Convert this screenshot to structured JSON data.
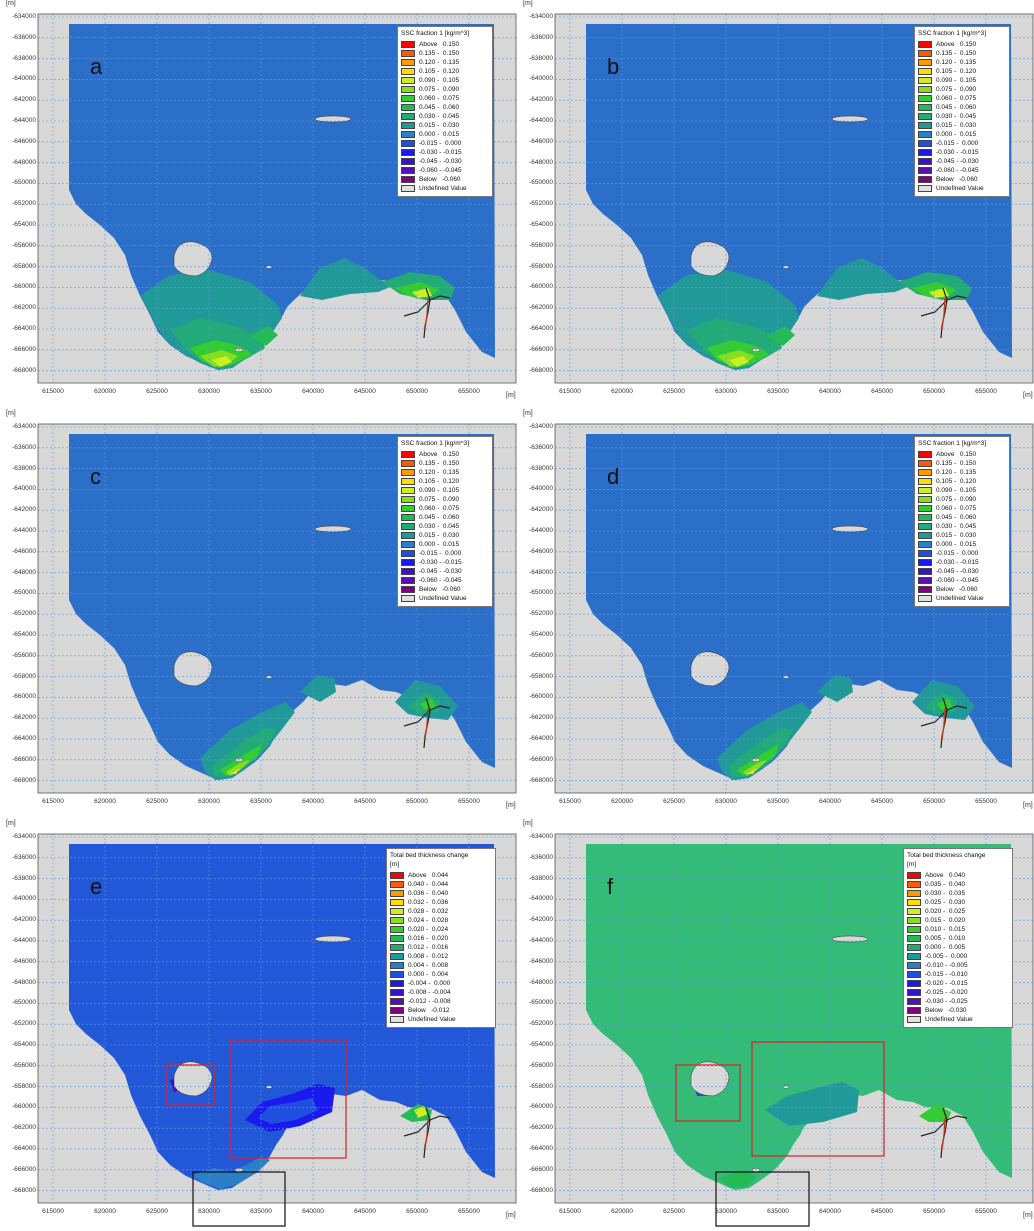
{
  "axis": {
    "unit_label": "[m]",
    "y_ticks": [
      "-634000",
      "-636000",
      "-638000",
      "-640000",
      "-642000",
      "-644000",
      "-646000",
      "-648000",
      "-650000",
      "-652000",
      "-654000",
      "-656000",
      "-658000",
      "-660000",
      "-662000",
      "-664000",
      "-666000",
      "-668000"
    ],
    "x_ticks": [
      "615000",
      "620000",
      "625000",
      "630000",
      "635000",
      "640000",
      "645000",
      "650000",
      "655000"
    ]
  },
  "colors": {
    "land": "#d8d8d8",
    "sea_ssc": "#2b6fc9",
    "sea_bed_e": "#2257d8",
    "sea_bed_f": "#33bb77",
    "grid_line": "#5a9be0",
    "highlight_red": "#e02020",
    "highlight_black": "#111111"
  },
  "ssc_legend": {
    "title": "SSC fraction 1 [kg/m^3]",
    "rows": [
      {
        "label": "Above   0.150",
        "color": "#ff0000"
      },
      {
        "label": "0.135 -  0.150",
        "color": "#ff5a00"
      },
      {
        "label": "0.120 -  0.135",
        "color": "#ff9900"
      },
      {
        "label": "0.105 -  0.120",
        "color": "#ffdd00"
      },
      {
        "label": "0.090 -  0.105",
        "color": "#ccee22"
      },
      {
        "label": "0.075 -  0.090",
        "color": "#88dd22"
      },
      {
        "label": "0.060 -  0.075",
        "color": "#33cc33"
      },
      {
        "label": "0.045 -  0.060",
        "color": "#22bb55"
      },
      {
        "label": "0.030 -  0.045",
        "color": "#22aa77"
      },
      {
        "label": "0.015 -  0.030",
        "color": "#229999"
      },
      {
        "label": "0.000 -  0.015",
        "color": "#2b7fc9"
      },
      {
        "label": "-0.015 -  0.000",
        "color": "#1e4fe0"
      },
      {
        "label": "-0.030 - -0.015",
        "color": "#1a1aee"
      },
      {
        "label": "-0.045 - -0.030",
        "color": "#3a12cc"
      },
      {
        "label": "-0.060 - -0.045",
        "color": "#5a0fb0"
      },
      {
        "label": "Below   -0.060",
        "color": "#800080"
      },
      {
        "label": "Undefined Value",
        "color": "#e0e0e0"
      }
    ]
  },
  "bed_legend_e": {
    "title_line1": "Total bed thickness change",
    "title_line2": "[m]",
    "rows": [
      {
        "label": "Above   0.044",
        "color": "#ff0000"
      },
      {
        "label": "0.040 -  0.044",
        "color": "#ff5a00"
      },
      {
        "label": "0.036 -  0.040",
        "color": "#ff9900"
      },
      {
        "label": "0.032 -  0.036",
        "color": "#ffdd00"
      },
      {
        "label": "0.028 -  0.032",
        "color": "#ccee22"
      },
      {
        "label": "0.024 -  0.028",
        "color": "#88dd22"
      },
      {
        "label": "0.020 -  0.024",
        "color": "#33cc33"
      },
      {
        "label": "0.016 -  0.020",
        "color": "#22bb55"
      },
      {
        "label": "0.012 -  0.016",
        "color": "#22aa77"
      },
      {
        "label": "0.008 -  0.012",
        "color": "#229999"
      },
      {
        "label": "0.004 -  0.008",
        "color": "#2b7fc9"
      },
      {
        "label": "0.000 -  0.004",
        "color": "#1e4fe0"
      },
      {
        "label": "-0.004 -  0.000",
        "color": "#1a1aee"
      },
      {
        "label": "-0.008 - -0.004",
        "color": "#3a12cc"
      },
      {
        "label": "-0.012 - -0.008",
        "color": "#5a0fb0"
      },
      {
        "label": "Below   -0.012",
        "color": "#800080"
      },
      {
        "label": "Undefined Value",
        "color": "#e0e0e0"
      }
    ]
  },
  "bed_legend_f": {
    "title_line1": "Total bed thickness change",
    "title_line2": "[m]",
    "rows": [
      {
        "label": "Above   0.040",
        "color": "#ff0000"
      },
      {
        "label": "0.035 -  0.040",
        "color": "#ff5a00"
      },
      {
        "label": "0.030 -  0.035",
        "color": "#ff9900"
      },
      {
        "label": "0.025 -  0.030",
        "color": "#ffdd00"
      },
      {
        "label": "0.020 -  0.025",
        "color": "#ccee22"
      },
      {
        "label": "0.015 -  0.020",
        "color": "#88dd22"
      },
      {
        "label": "0.010 -  0.015",
        "color": "#33cc33"
      },
      {
        "label": "0.005 -  0.010",
        "color": "#22bb55"
      },
      {
        "label": "0.000 -  0.005",
        "color": "#22aa77"
      },
      {
        "label": "-0.005 -  0.000",
        "color": "#229999"
      },
      {
        "label": "-0.010 - -0.005",
        "color": "#2b7fc9"
      },
      {
        "label": "-0.015 - -0.010",
        "color": "#1e4fe0"
      },
      {
        "label": "-0.020 - -0.015",
        "color": "#1a1aee"
      },
      {
        "label": "-0.025 - -0.020",
        "color": "#3a12cc"
      },
      {
        "label": "-0.030 - -0.025",
        "color": "#5a0fb0"
      },
      {
        "label": "Below   -0.030",
        "color": "#800080"
      },
      {
        "label": "Undefined Value",
        "color": "#e0e0e0"
      }
    ]
  },
  "panels": [
    {
      "id": "a",
      "label": "a",
      "legend": "ssc_legend",
      "sea": "sea_ssc",
      "variant": "ssc_wide"
    },
    {
      "id": "b",
      "label": "b",
      "legend": "ssc_legend",
      "sea": "sea_ssc",
      "variant": "ssc_wide"
    },
    {
      "id": "c",
      "label": "c",
      "legend": "ssc_legend",
      "sea": "sea_ssc",
      "variant": "ssc_narrow"
    },
    {
      "id": "d",
      "label": "d",
      "legend": "ssc_legend",
      "sea": "sea_ssc",
      "variant": "ssc_narrow"
    },
    {
      "id": "e",
      "label": "e",
      "legend": "bed_legend_e",
      "sea": "sea_bed_e",
      "variant": "bed_e"
    },
    {
      "id": "f",
      "label": "f",
      "legend": "bed_legend_f",
      "sea": "sea_bed_f",
      "variant": "bed_f"
    }
  ]
}
